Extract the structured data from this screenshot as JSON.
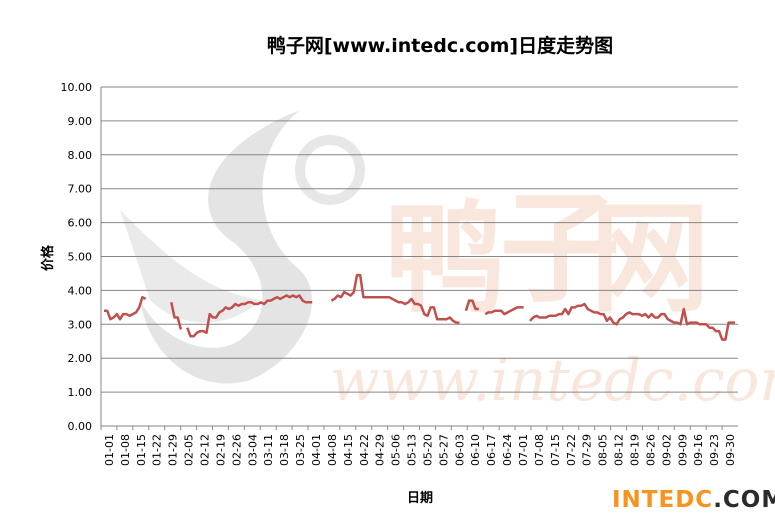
{
  "chart_data": {
    "type": "line",
    "title": "鸭子网[www.intedc.com]日度走势图",
    "xlabel": "日期",
    "ylabel": "价格",
    "ylim": [
      0,
      10
    ],
    "yticks": [
      "0.00",
      "1.00",
      "2.00",
      "3.00",
      "4.00",
      "5.00",
      "6.00",
      "7.00",
      "8.00",
      "9.00",
      "10.00"
    ],
    "grid": true,
    "legend": "none",
    "series_color": "#c0504d",
    "categories": [
      "01-01",
      "01-08",
      "01-15",
      "01-22",
      "01-29",
      "02-05",
      "02-12",
      "02-19",
      "02-26",
      "03-04",
      "03-11",
      "03-18",
      "03-25",
      "04-01",
      "04-08",
      "04-15",
      "04-22",
      "04-29",
      "05-06",
      "05-13",
      "05-20",
      "05-27",
      "06-03",
      "06-10",
      "06-17",
      "06-24",
      "07-01",
      "07-08",
      "07-15",
      "07-22",
      "07-29",
      "08-05",
      "08-12",
      "08-19",
      "08-26",
      "09-02",
      "09-09",
      "09-16",
      "09-23",
      "09-30"
    ],
    "series": [
      {
        "values": [
          [
            3.4,
            3.4,
            3.15,
            3.2,
            3.3,
            3.15,
            3.3,
            3.3,
            3.25,
            3.3,
            3.35,
            3.5,
            3.8,
            3.75,
            null,
            null,
            null,
            null,
            null,
            null,
            null
          ],
          [
            3.65,
            3.2,
            3.2,
            2.85,
            null,
            2.9,
            2.65,
            2.65,
            2.75,
            2.8,
            2.8,
            2.75,
            3.3,
            3.2,
            3.2
          ],
          [
            3.35,
            3.4,
            3.5,
            3.45,
            3.5,
            3.6,
            3.55,
            3.6,
            3.6,
            3.65,
            3.65,
            3.6,
            3.6,
            3.65,
            3.6,
            3.7,
            3.7,
            3.75,
            3.8,
            3.75,
            3.8,
            3.85,
            3.8,
            3.85,
            3.8,
            3.85,
            3.7,
            3.65,
            3.65,
            3.65,
            null,
            null,
            null,
            null,
            null
          ],
          [
            3.7,
            3.75,
            3.85,
            3.8,
            3.95,
            3.9,
            3.85,
            3.95,
            4.45,
            4.45,
            3.8,
            3.8,
            3.8,
            3.8,
            3.8,
            3.8,
            3.8,
            3.8,
            3.8,
            3.75,
            3.7,
            3.65,
            3.65,
            3.6,
            3.65,
            3.75,
            3.6,
            3.6,
            3.55,
            3.3,
            3.25,
            3.5,
            3.5,
            3.15,
            3.15,
            3.15,
            3.15,
            3.2,
            3.1,
            3.05,
            3.05,
            null
          ],
          [
            3.4,
            3.7,
            3.7,
            3.45,
            3.45,
            null,
            3.3,
            3.35,
            3.35,
            3.4,
            3.4,
            3.4,
            3.3,
            3.35,
            3.4,
            3.45,
            3.5,
            3.5,
            3.5,
            null,
            3.1,
            3.2,
            3.25,
            3.2,
            3.2,
            3.2,
            3.25,
            3.25,
            3.25,
            3.3,
            3.3,
            3.45,
            3.3,
            3.5,
            3.5,
            3.55,
            3.55,
            3.6,
            3.45,
            3.4,
            3.35,
            3.35,
            3.3,
            3.3,
            3.1,
            3.2,
            3.05,
            3.0,
            3.15,
            3.2,
            3.3,
            3.35,
            3.3,
            3.3,
            3.3,
            3.25,
            3.3,
            3.2,
            3.3,
            3.2,
            3.2,
            3.3,
            3.3,
            3.15,
            3.1,
            3.05,
            3.05,
            3.0,
            3.45,
            3.0,
            3.05,
            3.05,
            3.05,
            3.0,
            3.0,
            3.0,
            2.9,
            2.9,
            2.8,
            2.8,
            2.55,
            2.55,
            3.05,
            3.05,
            3.05
          ]
        ]
      }
    ]
  }
}
